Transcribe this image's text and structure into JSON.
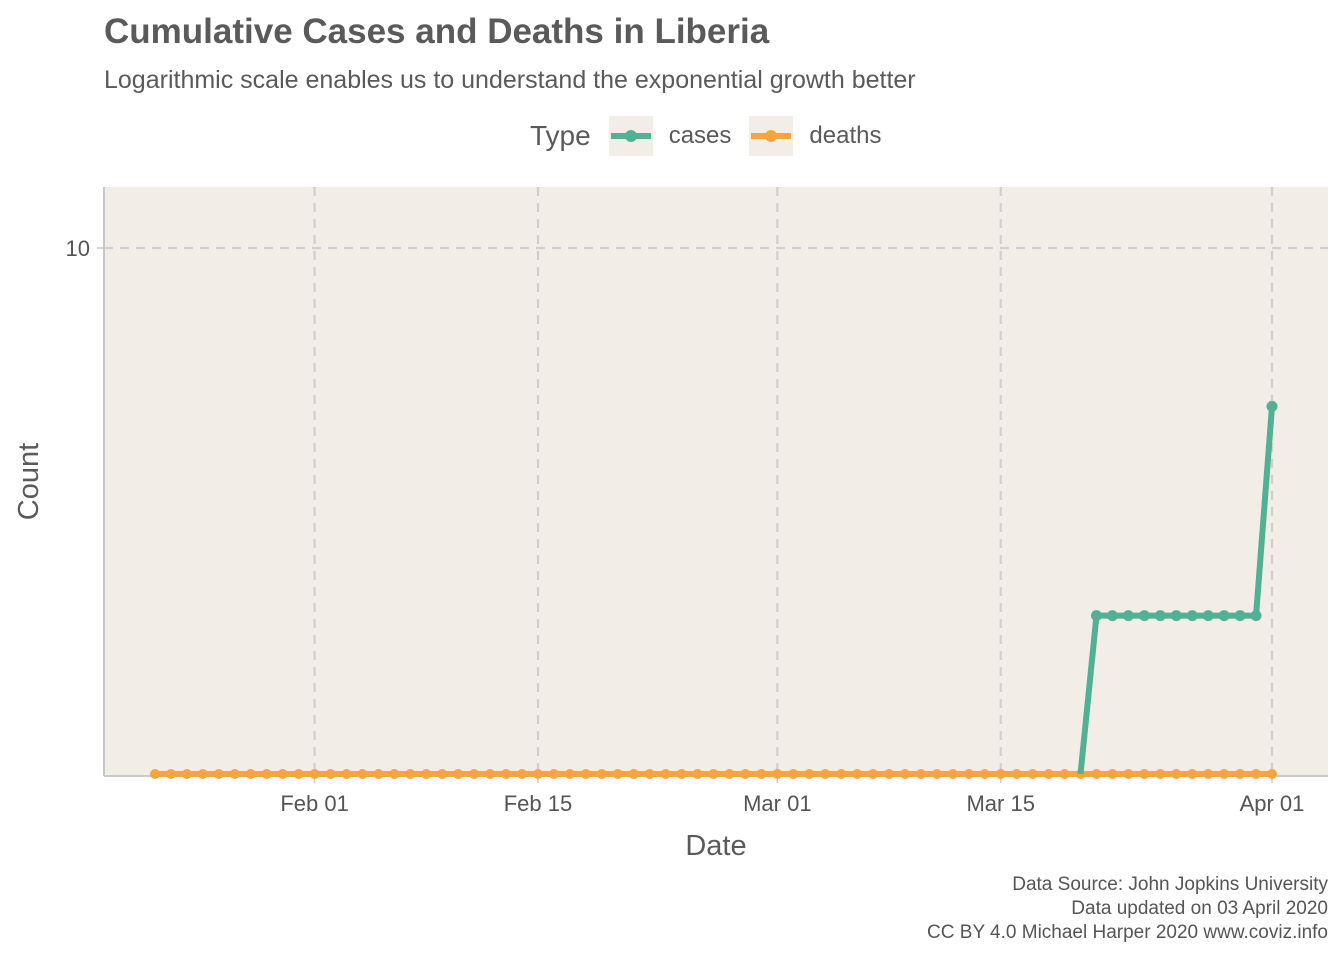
{
  "chart_data": {
    "type": "line",
    "title": "Cumulative Cases and Deaths in Liberia",
    "subtitle": "Logarithmic scale enables us to understand the exponential growth better",
    "xlabel": "Date",
    "ylabel": "Count",
    "y_scale": "log",
    "x_range": [
      "2020-01-22",
      "2020-04-01"
    ],
    "y_ticks": [
      {
        "value": 10,
        "label": "10"
      }
    ],
    "x_ticks": [
      {
        "value": "2020-02-01",
        "label": "Feb 01"
      },
      {
        "value": "2020-02-15",
        "label": "Feb 15"
      },
      {
        "value": "2020-03-01",
        "label": "Mar 01"
      },
      {
        "value": "2020-03-15",
        "label": "Mar 15"
      },
      {
        "value": "2020-04-01",
        "label": "Apr 01"
      }
    ],
    "grid": true,
    "legend": {
      "title": "Type",
      "position": "top"
    },
    "series": [
      {
        "name": "cases",
        "color": "#52b195",
        "points": [
          {
            "date": "2020-03-20",
            "value": 1
          },
          {
            "date": "2020-03-21",
            "value": 2
          },
          {
            "date": "2020-03-22",
            "value": 2
          },
          {
            "date": "2020-03-23",
            "value": 2
          },
          {
            "date": "2020-03-24",
            "value": 2
          },
          {
            "date": "2020-03-25",
            "value": 2
          },
          {
            "date": "2020-03-26",
            "value": 2
          },
          {
            "date": "2020-03-27",
            "value": 2
          },
          {
            "date": "2020-03-28",
            "value": 2
          },
          {
            "date": "2020-03-29",
            "value": 2
          },
          {
            "date": "2020-03-30",
            "value": 2
          },
          {
            "date": "2020-03-31",
            "value": 2
          },
          {
            "date": "2020-04-01",
            "value": 5
          }
        ]
      },
      {
        "name": "deaths",
        "color": "#f8a43c",
        "range": {
          "start": "2020-01-22",
          "end": "2020-04-01",
          "value": 1
        }
      }
    ]
  },
  "caption": {
    "line1": "Data Source: John Jopkins University",
    "line2": "Data updated on 03 April 2020",
    "line3": "CC BY 4.0 Michael Harper 2020 www.coviz.info"
  },
  "colors": {
    "panel_background": "#f3ede7",
    "grid": "#d0cfcf",
    "axis_line": "#c8c8c8",
    "text": "#555555"
  }
}
